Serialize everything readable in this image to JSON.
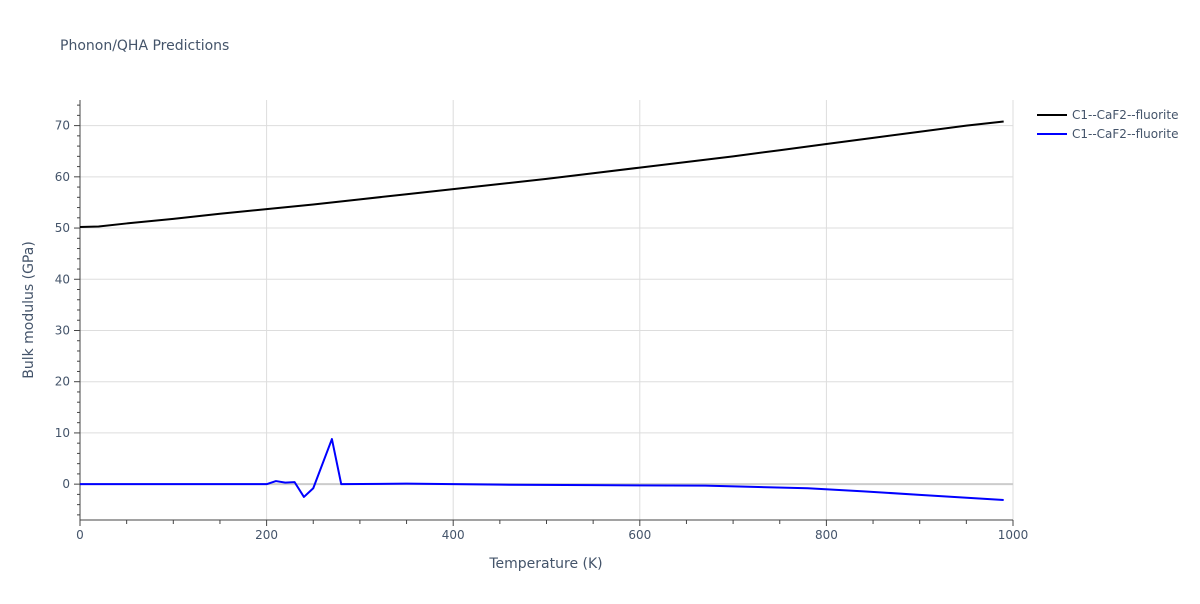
{
  "chart_data": {
    "type": "line",
    "title": "Phonon/QHA Predictions",
    "xlabel": "Temperature (K)",
    "ylabel": "Bulk modulus (GPa)",
    "xlim": [
      0,
      1000
    ],
    "ylim": [
      -7,
      75
    ],
    "xticks": [
      0,
      200,
      400,
      600,
      800,
      1000
    ],
    "yticks": [
      0,
      10,
      20,
      30,
      40,
      50,
      60,
      70
    ],
    "grid": true,
    "legend_position": "top-right",
    "series": [
      {
        "name": "C1--CaF2--fluorite",
        "color": "#000000",
        "x": [
          0,
          20,
          50,
          100,
          150,
          200,
          250,
          300,
          350,
          400,
          450,
          500,
          550,
          600,
          650,
          700,
          750,
          800,
          850,
          900,
          950,
          990
        ],
        "y": [
          50.2,
          50.3,
          50.9,
          51.8,
          52.8,
          53.7,
          54.6,
          55.6,
          56.6,
          57.6,
          58.6,
          59.6,
          60.7,
          61.8,
          62.9,
          64.0,
          65.2,
          66.4,
          67.6,
          68.8,
          70.0,
          70.8
        ]
      },
      {
        "name": "C1--CaF2--fluorite",
        "color": "#0000ff",
        "x": [
          0,
          100,
          200,
          210,
          220,
          230,
          240,
          250,
          270,
          280,
          350,
          450,
          550,
          670,
          780,
          840,
          900,
          990
        ],
        "y": [
          0,
          0,
          0,
          0.6,
          0.3,
          0.4,
          -2.5,
          -0.8,
          8.8,
          0,
          0.1,
          -0.1,
          -0.2,
          -0.3,
          -0.8,
          -1.4,
          -2.1,
          -3.1
        ]
      }
    ]
  }
}
